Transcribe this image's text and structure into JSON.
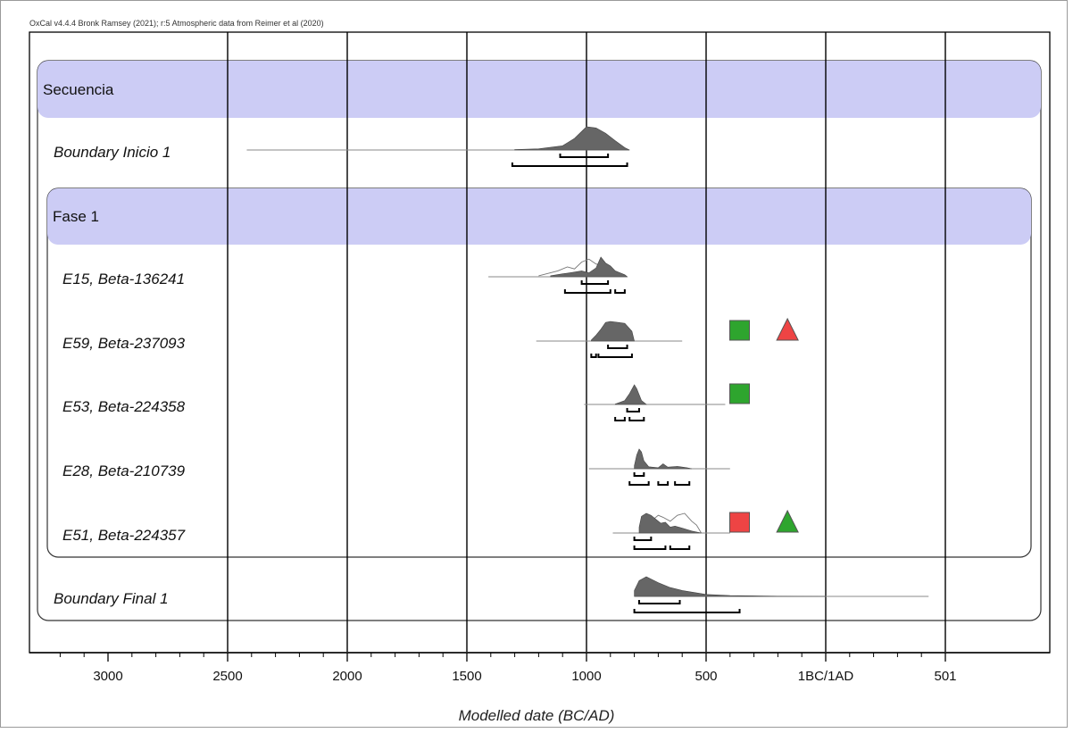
{
  "header_text": "OxCal v4.4.4 Bronk Ramsey (2021); r:5 Atmospheric data from Reimer et al (2020)",
  "colors": {
    "band": "#ccccf5",
    "density_fill": "#666666",
    "green": "#2ea52e",
    "red": "#ee4444"
  },
  "chart_data": {
    "type": "area",
    "xlabel": "Modelled date (BC/AD)",
    "x_axis": {
      "direction": "reversed",
      "range": [
        -3250,
        450
      ],
      "major_ticks": [
        3000,
        2500,
        2000,
        1500,
        1000,
        500,
        "1BC/1AD",
        501
      ],
      "major_tick_values": [
        -3000,
        -2500,
        -2000,
        -1500,
        -1000,
        -500,
        0,
        500
      ],
      "minor_step": 100,
      "vertical_gridlines_at": [
        -2500,
        -2000,
        -1500,
        -1000,
        -500,
        0,
        500
      ]
    },
    "groups": [
      {
        "label": "Secuencia",
        "type": "sequence"
      },
      {
        "label": "Fase 1",
        "type": "phase"
      }
    ],
    "rows": [
      {
        "label": "Boundary Inicio 1",
        "extent": [
          -2420,
          -820
        ],
        "peak_at": -1000,
        "density": [
          [
            -1300,
            0.02
          ],
          [
            -1200,
            0.05
          ],
          [
            -1100,
            0.18
          ],
          [
            -1050,
            0.5
          ],
          [
            -1000,
            1
          ],
          [
            -960,
            0.95
          ],
          [
            -920,
            0.72
          ],
          [
            -880,
            0.4
          ],
          [
            -840,
            0.1
          ],
          [
            -820,
            0
          ]
        ],
        "hpd68": [
          [
            -1110,
            -910
          ]
        ],
        "hpd95": [
          [
            -1310,
            -830
          ]
        ]
      },
      {
        "label": "E15, Beta-136241",
        "extent": [
          -1410,
          -830
        ],
        "density": [
          [
            -1150,
            0.05
          ],
          [
            -1100,
            0.15
          ],
          [
            -1060,
            0.22
          ],
          [
            -1020,
            0.3
          ],
          [
            -990,
            0.2
          ],
          [
            -960,
            0.45
          ],
          [
            -940,
            1
          ],
          [
            -920,
            0.7
          ],
          [
            -900,
            0.55
          ],
          [
            -880,
            0.3
          ],
          [
            -840,
            0.1
          ],
          [
            -830,
            0
          ]
        ],
        "density_unmodelled": [
          [
            -1200,
            0.05
          ],
          [
            -1120,
            0.3
          ],
          [
            -1080,
            0.5
          ],
          [
            -1050,
            0.4
          ],
          [
            -1020,
            0.75
          ],
          [
            -990,
            0.9
          ],
          [
            -960,
            0.65
          ],
          [
            -930,
            0.55
          ],
          [
            -900,
            0.3
          ],
          [
            -860,
            0.1
          ],
          [
            -830,
            0
          ]
        ],
        "hpd68": [
          [
            -1020,
            -910
          ]
        ],
        "hpd95": [
          [
            -1090,
            -900
          ],
          [
            -880,
            -840
          ]
        ]
      },
      {
        "label": "E59, Beta-237093",
        "extent": [
          -1210,
          -600
        ],
        "density": [
          [
            -980,
            0.05
          ],
          [
            -960,
            0.3
          ],
          [
            -940,
            0.6
          ],
          [
            -920,
            0.95
          ],
          [
            -900,
            1
          ],
          [
            -870,
            0.95
          ],
          [
            -840,
            0.9
          ],
          [
            -810,
            0.5
          ],
          [
            -800,
            0
          ]
        ],
        "hpd68": [
          [
            -910,
            -830
          ]
        ],
        "hpd95": [
          [
            -980,
            -960
          ],
          [
            -950,
            -810
          ]
        ],
        "markers": [
          {
            "shape": "square",
            "color": "green",
            "value": -360
          },
          {
            "shape": "triangle",
            "color": "red",
            "value": -160
          }
        ]
      },
      {
        "label": "E53, Beta-224358",
        "extent": [
          -1010,
          -420
        ],
        "density": [
          [
            -880,
            0.02
          ],
          [
            -840,
            0.2
          ],
          [
            -820,
            0.55
          ],
          [
            -800,
            1
          ],
          [
            -790,
            0.8
          ],
          [
            -770,
            0.2
          ],
          [
            -750,
            0
          ]
        ],
        "hpd68": [
          [
            -830,
            -780
          ]
        ],
        "hpd95": [
          [
            -880,
            -840
          ],
          [
            -820,
            -760
          ]
        ],
        "markers": [
          {
            "shape": "square",
            "color": "green",
            "value": -360
          }
        ]
      },
      {
        "label": "E28, Beta-210739",
        "extent": [
          -990,
          -400
        ],
        "density": [
          [
            -800,
            0.15
          ],
          [
            -790,
            0.7
          ],
          [
            -780,
            1
          ],
          [
            -770,
            0.85
          ],
          [
            -760,
            0.4
          ],
          [
            -740,
            0.1
          ],
          [
            -700,
            0.05
          ],
          [
            -680,
            0.25
          ],
          [
            -660,
            0.08
          ],
          [
            -620,
            0.12
          ],
          [
            -580,
            0.05
          ],
          [
            -560,
            0
          ]
        ],
        "hpd68": [
          [
            -800,
            -760
          ]
        ],
        "hpd95": [
          [
            -820,
            -740
          ],
          [
            -700,
            -660
          ],
          [
            -630,
            -570
          ]
        ]
      },
      {
        "label": "E51, Beta-224357",
        "extent": [
          -890,
          -400
        ],
        "density": [
          [
            -780,
            0.3
          ],
          [
            -770,
            0.85
          ],
          [
            -750,
            1
          ],
          [
            -730,
            0.9
          ],
          [
            -710,
            0.7
          ],
          [
            -690,
            0.5
          ],
          [
            -670,
            0.55
          ],
          [
            -650,
            0.3
          ],
          [
            -630,
            0.35
          ],
          [
            -600,
            0.25
          ],
          [
            -560,
            0.1
          ],
          [
            -520,
            0
          ]
        ],
        "density_unmodelled": [
          [
            -780,
            0.2
          ],
          [
            -760,
            0.5
          ],
          [
            -740,
            0.6
          ],
          [
            -720,
            0.7
          ],
          [
            -700,
            0.9
          ],
          [
            -680,
            0.8
          ],
          [
            -650,
            0.6
          ],
          [
            -620,
            0.9
          ],
          [
            -590,
            1
          ],
          [
            -560,
            0.6
          ],
          [
            -540,
            0.4
          ],
          [
            -520,
            0
          ]
        ],
        "hpd68": [
          [
            -800,
            -730
          ]
        ],
        "hpd95": [
          [
            -800,
            -670
          ],
          [
            -650,
            -570
          ]
        ],
        "markers": [
          {
            "shape": "square",
            "color": "red",
            "value": -360
          },
          {
            "shape": "triangle",
            "color": "green",
            "value": -160
          }
        ]
      },
      {
        "label": "Boundary Final 1",
        "extent": [
          -800,
          430
        ],
        "density": [
          [
            -800,
            0.3
          ],
          [
            -780,
            0.8
          ],
          [
            -750,
            1
          ],
          [
            -700,
            0.7
          ],
          [
            -650,
            0.45
          ],
          [
            -600,
            0.3
          ],
          [
            -500,
            0.1
          ],
          [
            -400,
            0.04
          ],
          [
            -200,
            0.01
          ],
          [
            0,
            0
          ]
        ],
        "hpd68": [
          [
            -780,
            -610
          ]
        ],
        "hpd95": [
          [
            -800,
            -360
          ]
        ]
      }
    ]
  }
}
